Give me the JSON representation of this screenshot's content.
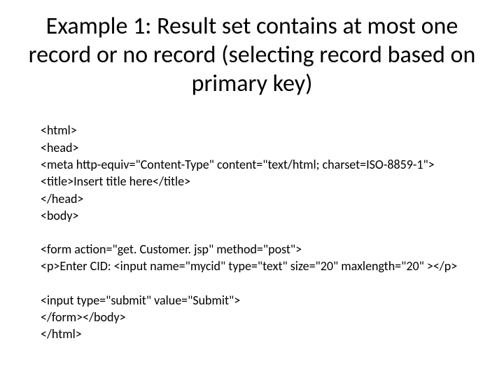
{
  "slide": {
    "title": "Example 1: Result set contains at most one record or no record (selecting record based on primary key)",
    "title_fontsize": 34,
    "title_color": "#000000",
    "background_color": "#ffffff",
    "code": {
      "fontsize": 18,
      "color": "#000000",
      "lines": [
        "<html>",
        "<head>",
        "<meta http-equiv=\"Content-Type\" content=\"text/html; charset=ISO-8859-1\">",
        "<title>Insert title here</title>",
        "</head>",
        "<body>",
        "",
        "<form action=\"get. Customer. jsp\" method=\"post\">",
        "<p>Enter CID: <input name=\"mycid\" type=\"text\" size=\"20\" maxlength=\"20\" ></p>",
        "",
        "<input type=\"submit\" value=\"Submit\">",
        "</form></body>",
        "</html>"
      ]
    }
  }
}
